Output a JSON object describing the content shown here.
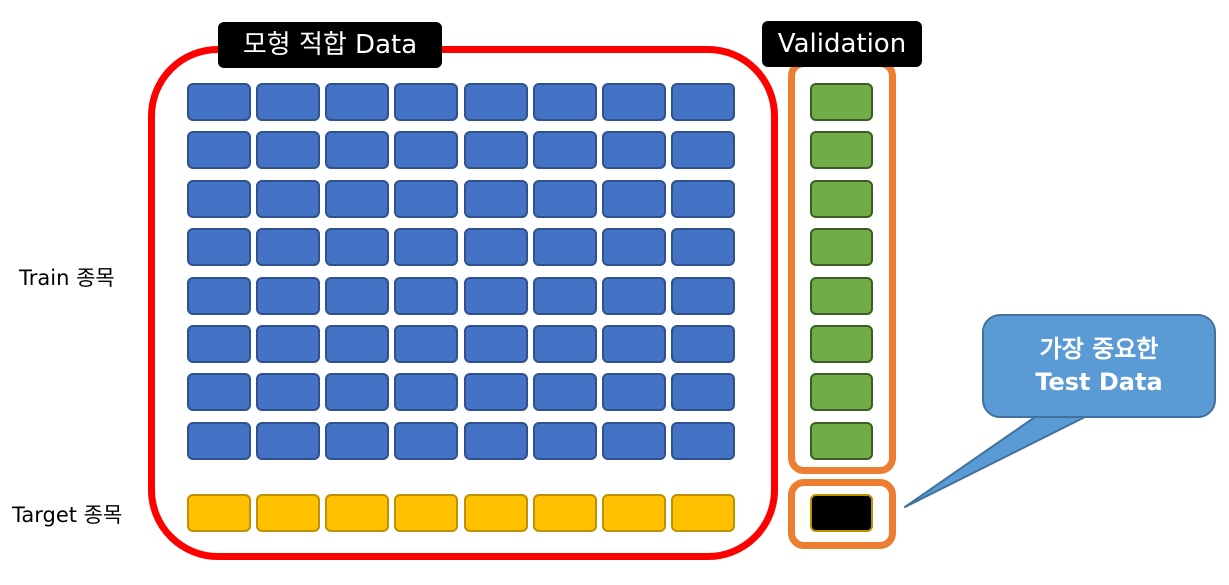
{
  "labels": {
    "model_fit": "모형 적합 Data",
    "validation": "Validation",
    "train_row": "Train 종목",
    "target_row": "Target 종목"
  },
  "callout": {
    "line1": "가장 중요한",
    "line2": "Test Data"
  },
  "grid": {
    "train_rows": 8,
    "train_cols": 8,
    "target_cols": 8,
    "validation_rows": 8,
    "test_cells": 1
  },
  "colors": {
    "train": "#4472c4",
    "target": "#ffc000",
    "validation": "#70ad47",
    "test": "#000000",
    "fit_frame": "#ff0000",
    "validation_frame": "#ed7d31",
    "callout": "#5b9bd5"
  }
}
